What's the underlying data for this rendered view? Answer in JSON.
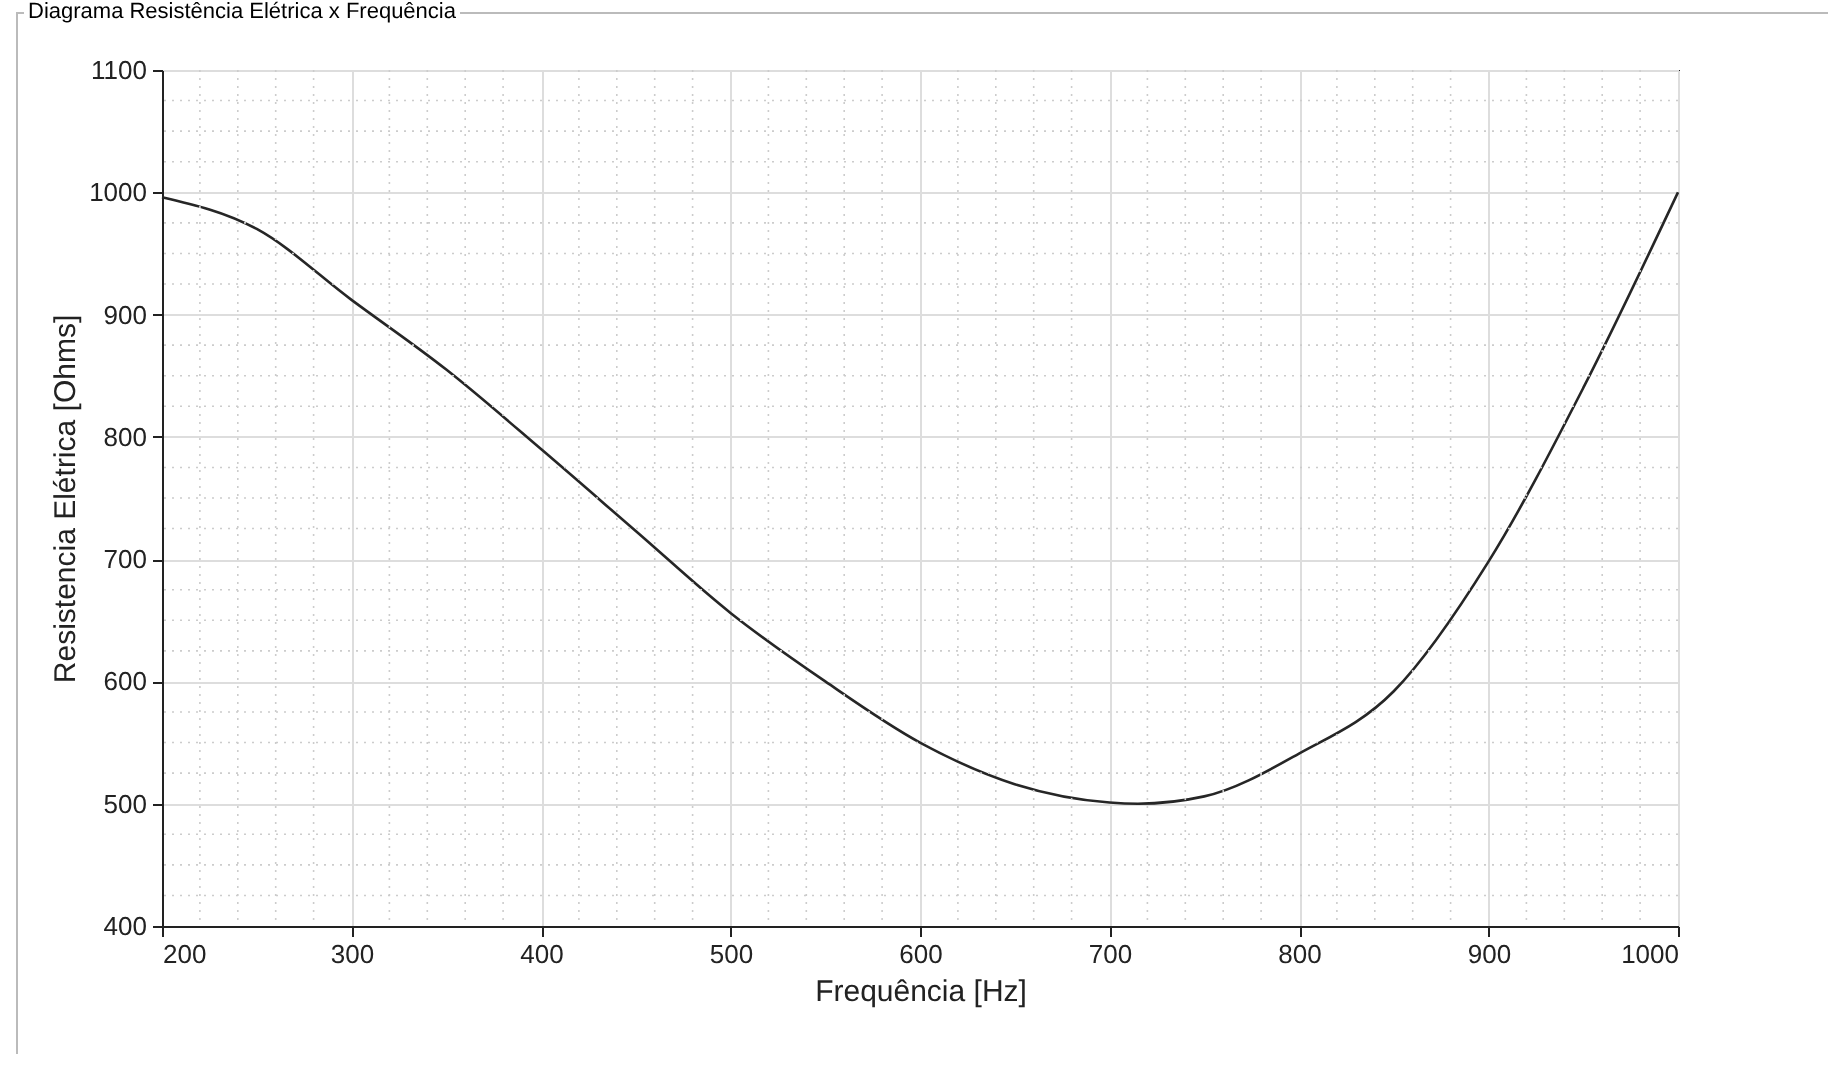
{
  "chart_data": {
    "type": "line",
    "title": "Diagrama Resistência Elétrica x Frequência",
    "xlabel": "Frequência [Hz]",
    "ylabel": "Resistencia Elétrica [Ohms]",
    "x": [
      200,
      250,
      300,
      350,
      400,
      450,
      500,
      550,
      600,
      650,
      700,
      715,
      750,
      800,
      850,
      900,
      950,
      1000
    ],
    "series": [
      {
        "color": "#262626",
        "values": [
          996,
          970,
          912,
          855,
          790,
          723,
          656,
          600,
          550,
          516,
          501,
          500,
          506,
          541,
          592,
          698,
          840,
          1000
        ]
      }
    ],
    "xlim": [
      200,
      1000
    ],
    "ylim": [
      400,
      1100
    ],
    "xticks": [
      200,
      300,
      400,
      500,
      600,
      700,
      800,
      900,
      1000
    ],
    "yticks": [
      400,
      500,
      600,
      700,
      800,
      900,
      1000,
      1100
    ],
    "grid": true,
    "line_style": "solid",
    "marker": "none"
  }
}
